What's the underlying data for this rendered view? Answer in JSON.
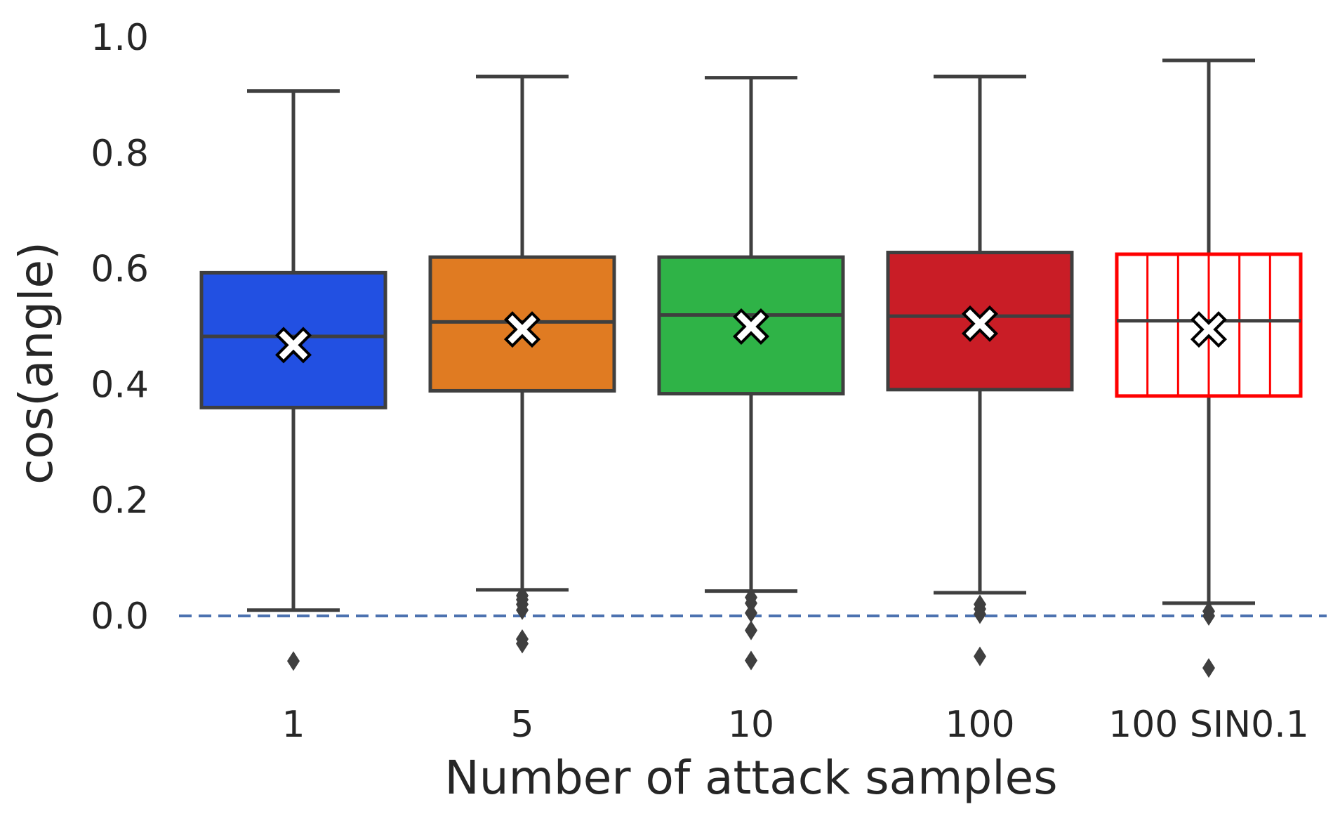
{
  "chart_data": {
    "type": "box",
    "title": "",
    "xlabel": "Number of attack samples",
    "ylabel": "cos(angle)",
    "ylim": [
      -0.12,
      1.02
    ],
    "yticks": [
      "0.0",
      "0.2",
      "0.4",
      "0.6",
      "0.8",
      "1.0"
    ],
    "ytick_values": [
      0.0,
      0.2,
      0.4,
      0.6,
      0.8,
      1.0
    ],
    "grid": false,
    "reference_line": {
      "y": 0.0,
      "style": "dashed",
      "color": "#4c72b0"
    },
    "categories": [
      "1",
      "5",
      "10",
      "100",
      "100 SIN0.1"
    ],
    "boxes": [
      {
        "category": "1",
        "whisker_low": 0.01,
        "q1": 0.36,
        "median": 0.483,
        "q3": 0.593,
        "whisker_high": 0.907,
        "mean": 0.468,
        "outliers": [
          -0.078
        ],
        "fill": "#2250e2",
        "edge": "#3f3f3f",
        "hatch": false
      },
      {
        "category": "5",
        "whisker_low": 0.045,
        "q1": 0.389,
        "median": 0.508,
        "q3": 0.62,
        "whisker_high": 0.932,
        "mean": 0.495,
        "outliers": [
          0.035,
          0.028,
          0.02,
          0.01,
          -0.04,
          -0.048
        ],
        "fill": "#e07b22",
        "edge": "#3f3f3f",
        "hatch": false
      },
      {
        "category": "10",
        "whisker_low": 0.043,
        "q1": 0.384,
        "median": 0.52,
        "q3": 0.62,
        "whisker_high": 0.93,
        "mean": 0.5,
        "outliers": [
          0.032,
          0.022,
          0.005,
          -0.025,
          -0.077
        ],
        "fill": "#2fb347",
        "edge": "#3f3f3f",
        "hatch": false
      },
      {
        "category": "100",
        "whisker_low": 0.04,
        "q1": 0.391,
        "median": 0.518,
        "q3": 0.628,
        "whisker_high": 0.932,
        "mean": 0.505,
        "outliers": [
          0.02,
          0.012,
          0.003,
          -0.07
        ],
        "fill": "#c91d26",
        "edge": "#3f3f3f",
        "hatch": false
      },
      {
        "category": "100 SIN0.1",
        "whisker_low": 0.022,
        "q1": 0.38,
        "median": 0.51,
        "q3": 0.625,
        "whisker_high": 0.96,
        "mean": 0.495,
        "outliers": [
          0.008,
          0.0,
          -0.09
        ],
        "fill": "#ffffff",
        "edge": "#ff0000",
        "hatch": true
      }
    ]
  }
}
